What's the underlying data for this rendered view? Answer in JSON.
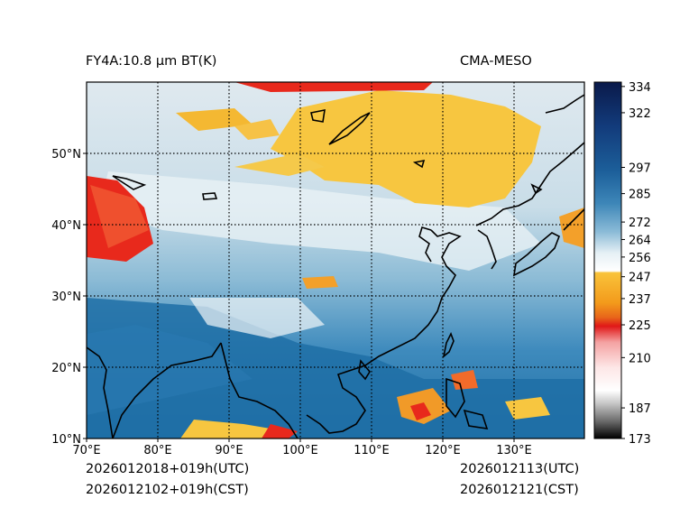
{
  "header": {
    "product_title": "FY4A:10.8 μm BT(K)",
    "source_label": "CMA-MESO"
  },
  "footer": {
    "init_time_utc": "2026012018+019h(UTC)",
    "init_time_cst": "2026012102+019h(CST)",
    "valid_time_utc": "2026012113(UTC)",
    "valid_time_cst": "2026012121(CST)"
  },
  "map": {
    "lon_range": [
      70,
      140
    ],
    "lat_range": [
      10,
      60
    ],
    "lon_ticks": [
      "70°E",
      "80°E",
      "90°E",
      "100°E",
      "110°E",
      "120°E",
      "130°E"
    ],
    "lat_ticks": [
      "10°N",
      "20°N",
      "30°N",
      "40°N",
      "50°N"
    ],
    "gridline_style": "dotted"
  },
  "colorbar": {
    "unit": "K",
    "min": 173,
    "max": 336,
    "tick_labels": [
      "334",
      "322",
      "297",
      "285",
      "272",
      "264",
      "256",
      "247",
      "237",
      "225",
      "210",
      "187",
      "173"
    ]
  },
  "colors": {
    "cold_cloud_red": "#e8291c",
    "high_cloud_yellow": "#f7c640",
    "clear_land_white": "#e8f0f4",
    "warm_ocean_blue": "#1f6fa6",
    "coastline": "#000000"
  }
}
